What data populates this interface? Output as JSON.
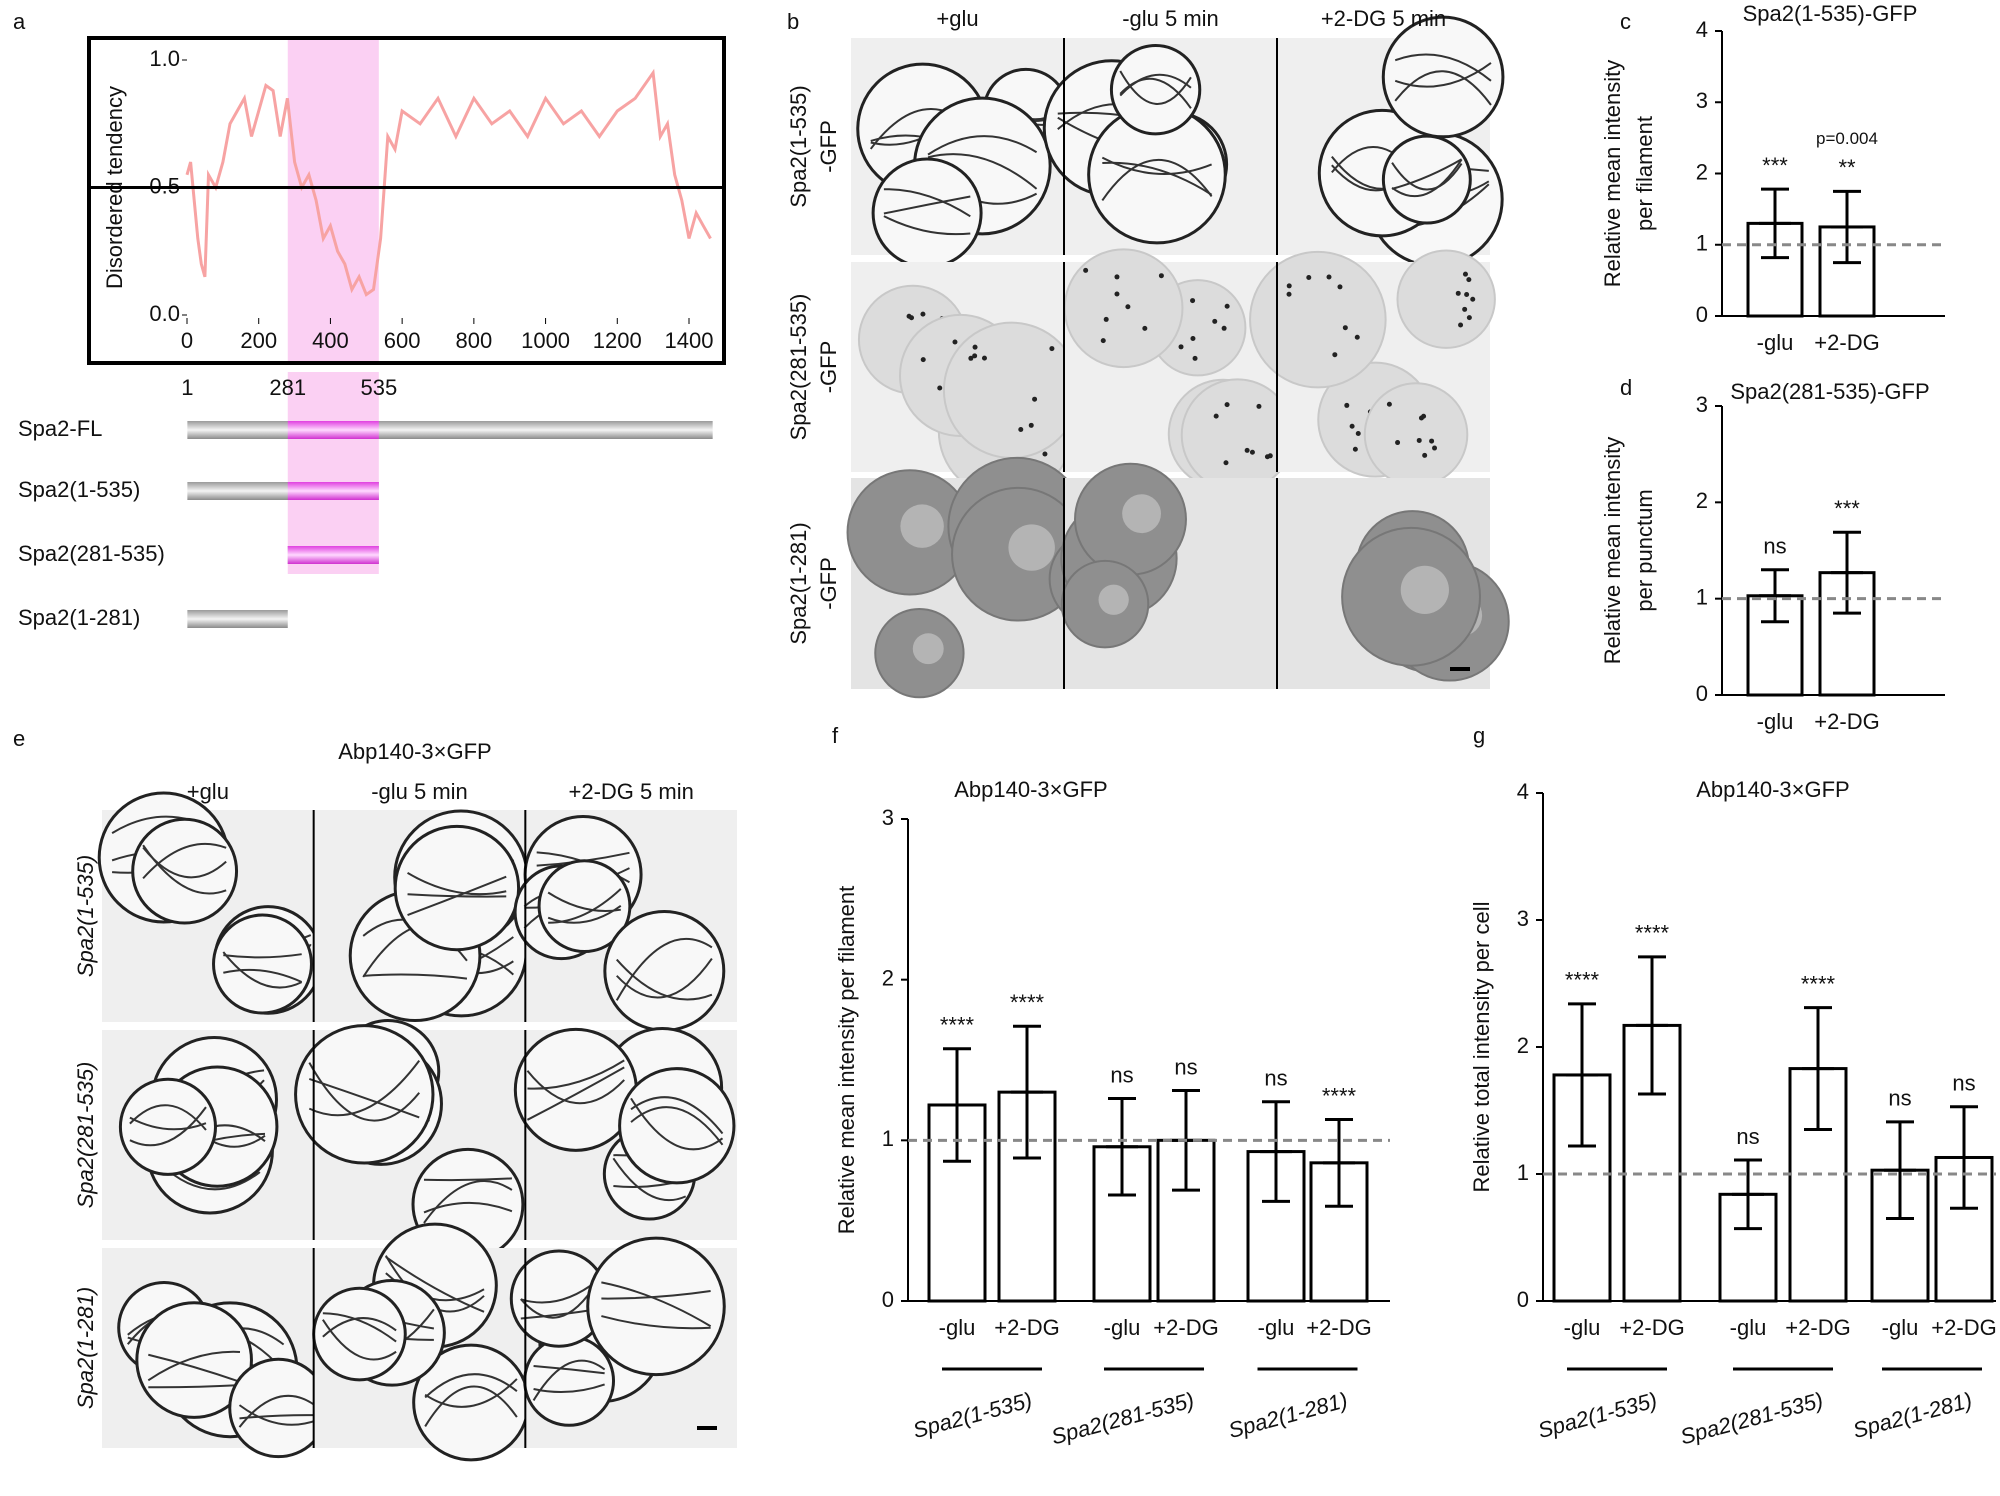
{
  "panel_letters": [
    "a",
    "b",
    "c",
    "d",
    "e",
    "f",
    "g"
  ],
  "chart_data": [
    {
      "type": "line",
      "ylabel": "Disordered tendency",
      "color": "#f7a3a3",
      "x": [
        0,
        10,
        20,
        30,
        40,
        50,
        60,
        80,
        100,
        120,
        140,
        160,
        180,
        200,
        220,
        240,
        260,
        280,
        300,
        320,
        340,
        360,
        380,
        400,
        420,
        440,
        460,
        480,
        500,
        520,
        540,
        560,
        580,
        600,
        650,
        700,
        750,
        800,
        850,
        900,
        950,
        1000,
        1050,
        1100,
        1150,
        1200,
        1250,
        1300,
        1320,
        1340,
        1360,
        1380,
        1400,
        1420,
        1440,
        1460
      ],
      "values": [
        0.55,
        0.6,
        0.45,
        0.3,
        0.2,
        0.15,
        0.55,
        0.5,
        0.6,
        0.75,
        0.8,
        0.85,
        0.7,
        0.8,
        0.9,
        0.88,
        0.7,
        0.85,
        0.6,
        0.5,
        0.55,
        0.45,
        0.3,
        0.35,
        0.25,
        0.2,
        0.1,
        0.15,
        0.08,
        0.1,
        0.3,
        0.7,
        0.65,
        0.8,
        0.75,
        0.85,
        0.7,
        0.85,
        0.75,
        0.8,
        0.7,
        0.85,
        0.75,
        0.8,
        0.7,
        0.8,
        0.85,
        0.95,
        0.7,
        0.75,
        0.55,
        0.45,
        0.3,
        0.4,
        0.35,
        0.3
      ],
      "xlim": [
        0,
        1470
      ],
      "ylim": [
        0,
        1
      ],
      "xticks": [
        0,
        200,
        400,
        600,
        800,
        1000,
        1200,
        1400
      ],
      "yticks": [
        {
          "value": 0,
          "label": "0.0"
        },
        {
          "value": 0.5,
          "label": "0.5"
        },
        {
          "value": 1,
          "label": "1.0"
        }
      ],
      "threshold": 0.5,
      "highlight": [
        281,
        535
      ],
      "highlight_color": "#fbd0f3"
    },
    {
      "type": "bar",
      "title": "Spa2(1-535)-GFP",
      "ylabel": [
        "Relative mean intensity",
        "per filament"
      ],
      "categories": [
        "-glu",
        "+2-DG"
      ],
      "values": [
        1.3,
        1.25
      ],
      "errors": [
        0.48,
        0.5
      ],
      "colors": [
        "#f4928c",
        "#1fd0dc"
      ],
      "annotations": [
        "***",
        "**"
      ],
      "p_values": [
        null,
        "p=0.004"
      ],
      "ylim": [
        0,
        4
      ],
      "yticks": [
        0,
        1,
        2,
        3,
        4
      ],
      "reference": 1
    },
    {
      "type": "bar",
      "title": "Spa2(281-535)-GFP",
      "ylabel": [
        "Relative mean intensity",
        "per punctum"
      ],
      "categories": [
        "-glu",
        "+2-DG"
      ],
      "values": [
        1.03,
        1.27
      ],
      "errors": [
        0.27,
        0.42
      ],
      "colors": [
        "#f4928c",
        "#1fd0dc"
      ],
      "annotations": [
        "ns",
        "***"
      ],
      "ylim": [
        0,
        3
      ],
      "yticks": [
        0,
        1,
        2,
        3
      ],
      "reference": 1
    },
    {
      "type": "bar",
      "title": "Abp140-3×GFP",
      "ylabel": [
        "Relative  mean intensity per filament"
      ],
      "categories": [
        "-glu",
        "+2-DG",
        "-glu",
        "+2-DG",
        "-glu",
        "+2-DG"
      ],
      "groups": [
        "Spa2(1-535)",
        "Spa2(281-535)",
        "Spa2(1-281)"
      ],
      "values": [
        1.22,
        1.3,
        0.96,
        1.0,
        0.93,
        0.86
      ],
      "errors": [
        0.35,
        0.41,
        0.3,
        0.31,
        0.31,
        0.27
      ],
      "colors": [
        "#f4928c",
        "#1fd0dc",
        "#f4928c",
        "#1fd0dc",
        "#f4928c",
        "#1fd0dc"
      ],
      "annotations": [
        "****",
        "****",
        "ns",
        "ns",
        "ns",
        "****"
      ],
      "ylim": [
        0,
        3
      ],
      "yticks": [
        0,
        1,
        2,
        3
      ],
      "reference": 1
    },
    {
      "type": "bar",
      "title": "Abp140-3×GFP",
      "ylabel": [
        "Relative  total intensity per cell"
      ],
      "categories": [
        "-glu",
        "+2-DG",
        "-glu",
        "+2-DG",
        "-glu",
        "+2-DG"
      ],
      "groups": [
        "Spa2(1-535)",
        "Spa2(281-535)",
        "Spa2(1-281)"
      ],
      "values": [
        1.78,
        2.17,
        0.84,
        1.83,
        1.03,
        1.13
      ],
      "errors": [
        0.56,
        0.54,
        0.27,
        0.48,
        0.38,
        0.4
      ],
      "colors": [
        "#f4928c",
        "#1fd0dc",
        "#f4928c",
        "#1fd0dc",
        "#f4928c",
        "#1fd0dc"
      ],
      "annotations": [
        "****",
        "****",
        "ns",
        "****",
        "ns",
        "ns"
      ],
      "ylim": [
        0,
        4
      ],
      "yticks": [
        0,
        1,
        2,
        3,
        4
      ],
      "reference": 1
    }
  ],
  "domains": {
    "ticks": [
      1,
      281,
      535
    ],
    "constructs": [
      {
        "label": "Spa2-FL",
        "start": 1,
        "end": 1466
      },
      {
        "label": "Spa2(1-535)",
        "start": 1,
        "end": 535
      },
      {
        "label": "Spa2(281-535)",
        "start": 281,
        "end": 535
      },
      {
        "label": "Spa2(1-281)",
        "start": 1,
        "end": 281
      }
    ]
  },
  "micrograph_b": {
    "columns": [
      "+glu",
      "-glu 5 min",
      "+2-DG 5 min"
    ],
    "rows": [
      [
        "Spa2(1-535)",
        "-GFP"
      ],
      [
        "Spa2(281-535)",
        "-GFP"
      ],
      [
        "Spa2(1-281)",
        "-GFP"
      ]
    ]
  },
  "micrograph_e": {
    "title": "Abp140-3×GFP",
    "columns": [
      "+glu",
      "-glu 5 min",
      "+2-DG 5 min"
    ],
    "rows": [
      "Spa2(1-535)",
      "Spa2(281-535)",
      "Spa2(1-281)"
    ]
  }
}
